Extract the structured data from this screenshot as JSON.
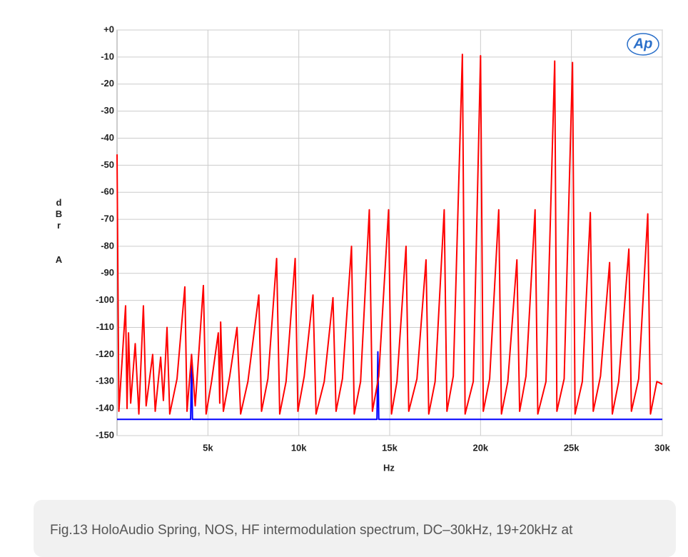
{
  "chart_data": {
    "type": "line",
    "logo": "Ap",
    "xlabel": "Hz",
    "ylabel": "dBr  A",
    "xlim": [
      0,
      30000
    ],
    "ylim": [
      -150,
      0
    ],
    "xticks": [
      {
        "value": 5000,
        "label": "5k"
      },
      {
        "value": 10000,
        "label": "10k"
      },
      {
        "value": 15000,
        "label": "15k"
      },
      {
        "value": 20000,
        "label": "20k"
      },
      {
        "value": 25000,
        "label": "25k"
      },
      {
        "value": 30000,
        "label": "30k"
      }
    ],
    "yticks": [
      {
        "value": 0,
        "label": "+0"
      },
      -10,
      -20,
      -30,
      -40,
      -50,
      -60,
      -70,
      -80,
      -90,
      -100,
      -110,
      -120,
      -130,
      -140,
      -150
    ],
    "grid": true,
    "series": [
      {
        "color": "#0000ff",
        "x": [
          0,
          4050,
          4100,
          4150,
          14300,
          14350,
          14400,
          30000
        ],
        "values": [
          -144,
          -144,
          -120,
          -144,
          -144,
          -119,
          -144,
          -144
        ]
      },
      {
        "color": "#ff0000",
        "x": [
          0,
          100,
          470,
          550,
          630,
          750,
          1000,
          1200,
          1450,
          1600,
          1960,
          2100,
          2400,
          2550,
          2750,
          2900,
          3300,
          3730,
          3850,
          4100,
          4300,
          4750,
          4900,
          5200,
          5570,
          5650,
          5700,
          5850,
          6200,
          6600,
          6800,
          7200,
          7800,
          7950,
          8300,
          8780,
          8950,
          9300,
          9800,
          9950,
          10300,
          10780,
          10950,
          11400,
          11880,
          12050,
          12400,
          12900,
          13050,
          13400,
          13880,
          14050,
          14400,
          14940,
          15100,
          15400,
          15900,
          16050,
          16500,
          17000,
          17150,
          17500,
          18000,
          18150,
          18500,
          19000,
          19150,
          19600,
          20000,
          20150,
          20500,
          21000,
          21150,
          21500,
          22000,
          22150,
          22500,
          23000,
          23150,
          23600,
          24080,
          24200,
          24600,
          25060,
          25200,
          25600,
          26040,
          26200,
          26600,
          27100,
          27250,
          27600,
          28160,
          28300,
          28700,
          29200,
          29350,
          29700,
          30000
        ],
        "values": [
          -46,
          -141,
          -102,
          -140,
          -112,
          -138,
          -116,
          -142,
          -102,
          -139,
          -120,
          -141,
          -121,
          -137,
          -110,
          -142,
          -129,
          -95,
          -141,
          -120,
          -139,
          -94.5,
          -142,
          -130,
          -112,
          -138,
          -108,
          -141,
          -128,
          -110,
          -142,
          -130,
          -98,
          -141,
          -129,
          -84.5,
          -142,
          -130,
          -84.5,
          -141,
          -128,
          -98,
          -142,
          -130,
          -99,
          -141,
          -129,
          -80,
          -142,
          -130,
          -66.5,
          -141,
          -128,
          -66.5,
          -142,
          -130,
          -80,
          -141,
          -129,
          -85,
          -142,
          -130,
          -66.5,
          -141,
          -128,
          -9,
          -142,
          -130,
          -9.5,
          -141,
          -129,
          -66.5,
          -142,
          -130,
          -85,
          -141,
          -128,
          -66.5,
          -142,
          -130,
          -11.5,
          -141,
          -129,
          -12,
          -142,
          -130,
          -67.5,
          -141,
          -128,
          -86,
          -142,
          -130,
          -81,
          -141,
          -129,
          -68,
          -142,
          -130,
          -131
        ]
      }
    ]
  },
  "caption": "Fig.13 HoloAudio Spring, NOS, HF intermodulation spectrum, DC–30kHz, 19+20kHz at"
}
